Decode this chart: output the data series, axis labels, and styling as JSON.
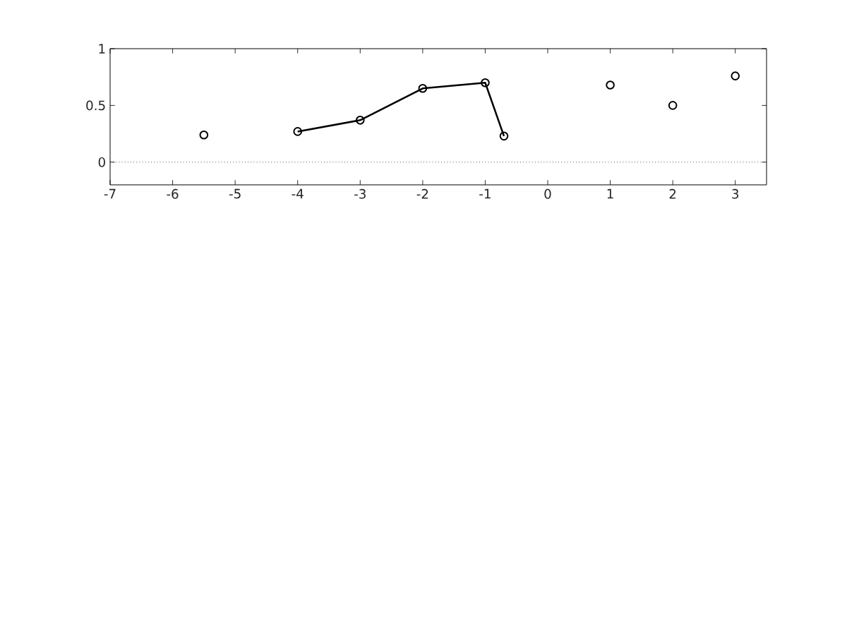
{
  "chart_data": {
    "type": "line",
    "xlim": [
      -7,
      3.5
    ],
    "ylim": [
      -0.2,
      1
    ],
    "xticks": [
      -7,
      -6,
      -5,
      -4,
      -3,
      -2,
      -1,
      0,
      1,
      2,
      3
    ],
    "yticks": [
      0,
      0.5,
      1
    ],
    "marker": "circle",
    "grid": false,
    "series": [
      {
        "type": "scatter",
        "color": "#000000",
        "x": [
          -5.5,
          1,
          2,
          3
        ],
        "values": [
          0.24,
          0.68,
          0.5,
          0.76
        ]
      },
      {
        "color": "#000000",
        "x": [
          -4,
          -3,
          -2,
          -1,
          -0.7
        ],
        "values": [
          0.27,
          0.37,
          0.65,
          0.7,
          0.23
        ]
      }
    ],
    "ref_lines": [
      {
        "axis": "y",
        "value": 0,
        "color": "#000000",
        "line_style": "dotted"
      }
    ]
  }
}
